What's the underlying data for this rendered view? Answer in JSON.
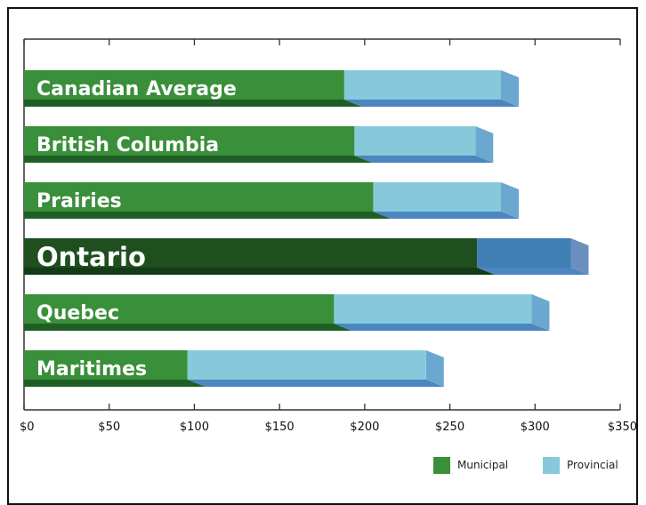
{
  "chart_data": {
    "type": "bar",
    "orientation": "horizontal",
    "stacked": true,
    "categories": [
      "Canadian Average",
      "British Columbia",
      "Prairies",
      "Ontario",
      "Quebec",
      "Maritimes"
    ],
    "series": [
      {
        "name": "Municipal",
        "values": [
          188,
          194,
          205,
          266,
          182,
          96
        ]
      },
      {
        "name": "Provincial",
        "values": [
          92,
          71,
          75,
          55,
          116,
          140
        ]
      }
    ],
    "highlight": "Ontario",
    "xlim": [
      0,
      350
    ],
    "x_ticks": [
      0,
      50,
      100,
      150,
      200,
      250,
      300,
      350
    ],
    "x_tick_labels": [
      "$0",
      "$50",
      "$100",
      "$150",
      "$200",
      "$250",
      "$300",
      "$350"
    ],
    "legend": {
      "position": "bottom-right",
      "entries": [
        "Municipal",
        "Provincial"
      ]
    },
    "grid": false,
    "colors": {
      "municipal": "#3a8f3a",
      "municipal_shadow": "#1f5f25",
      "provincial": "#87c9da",
      "provincial_side": "#6aa8cf",
      "provincial_shadow": "#4a86c0",
      "highlight_municipal": "#1f4f1f",
      "highlight_municipal_shadow": "#133b17",
      "highlight_provincial": "#3f7fb3",
      "highlight_provincial_side": "#6a8fbf"
    }
  }
}
